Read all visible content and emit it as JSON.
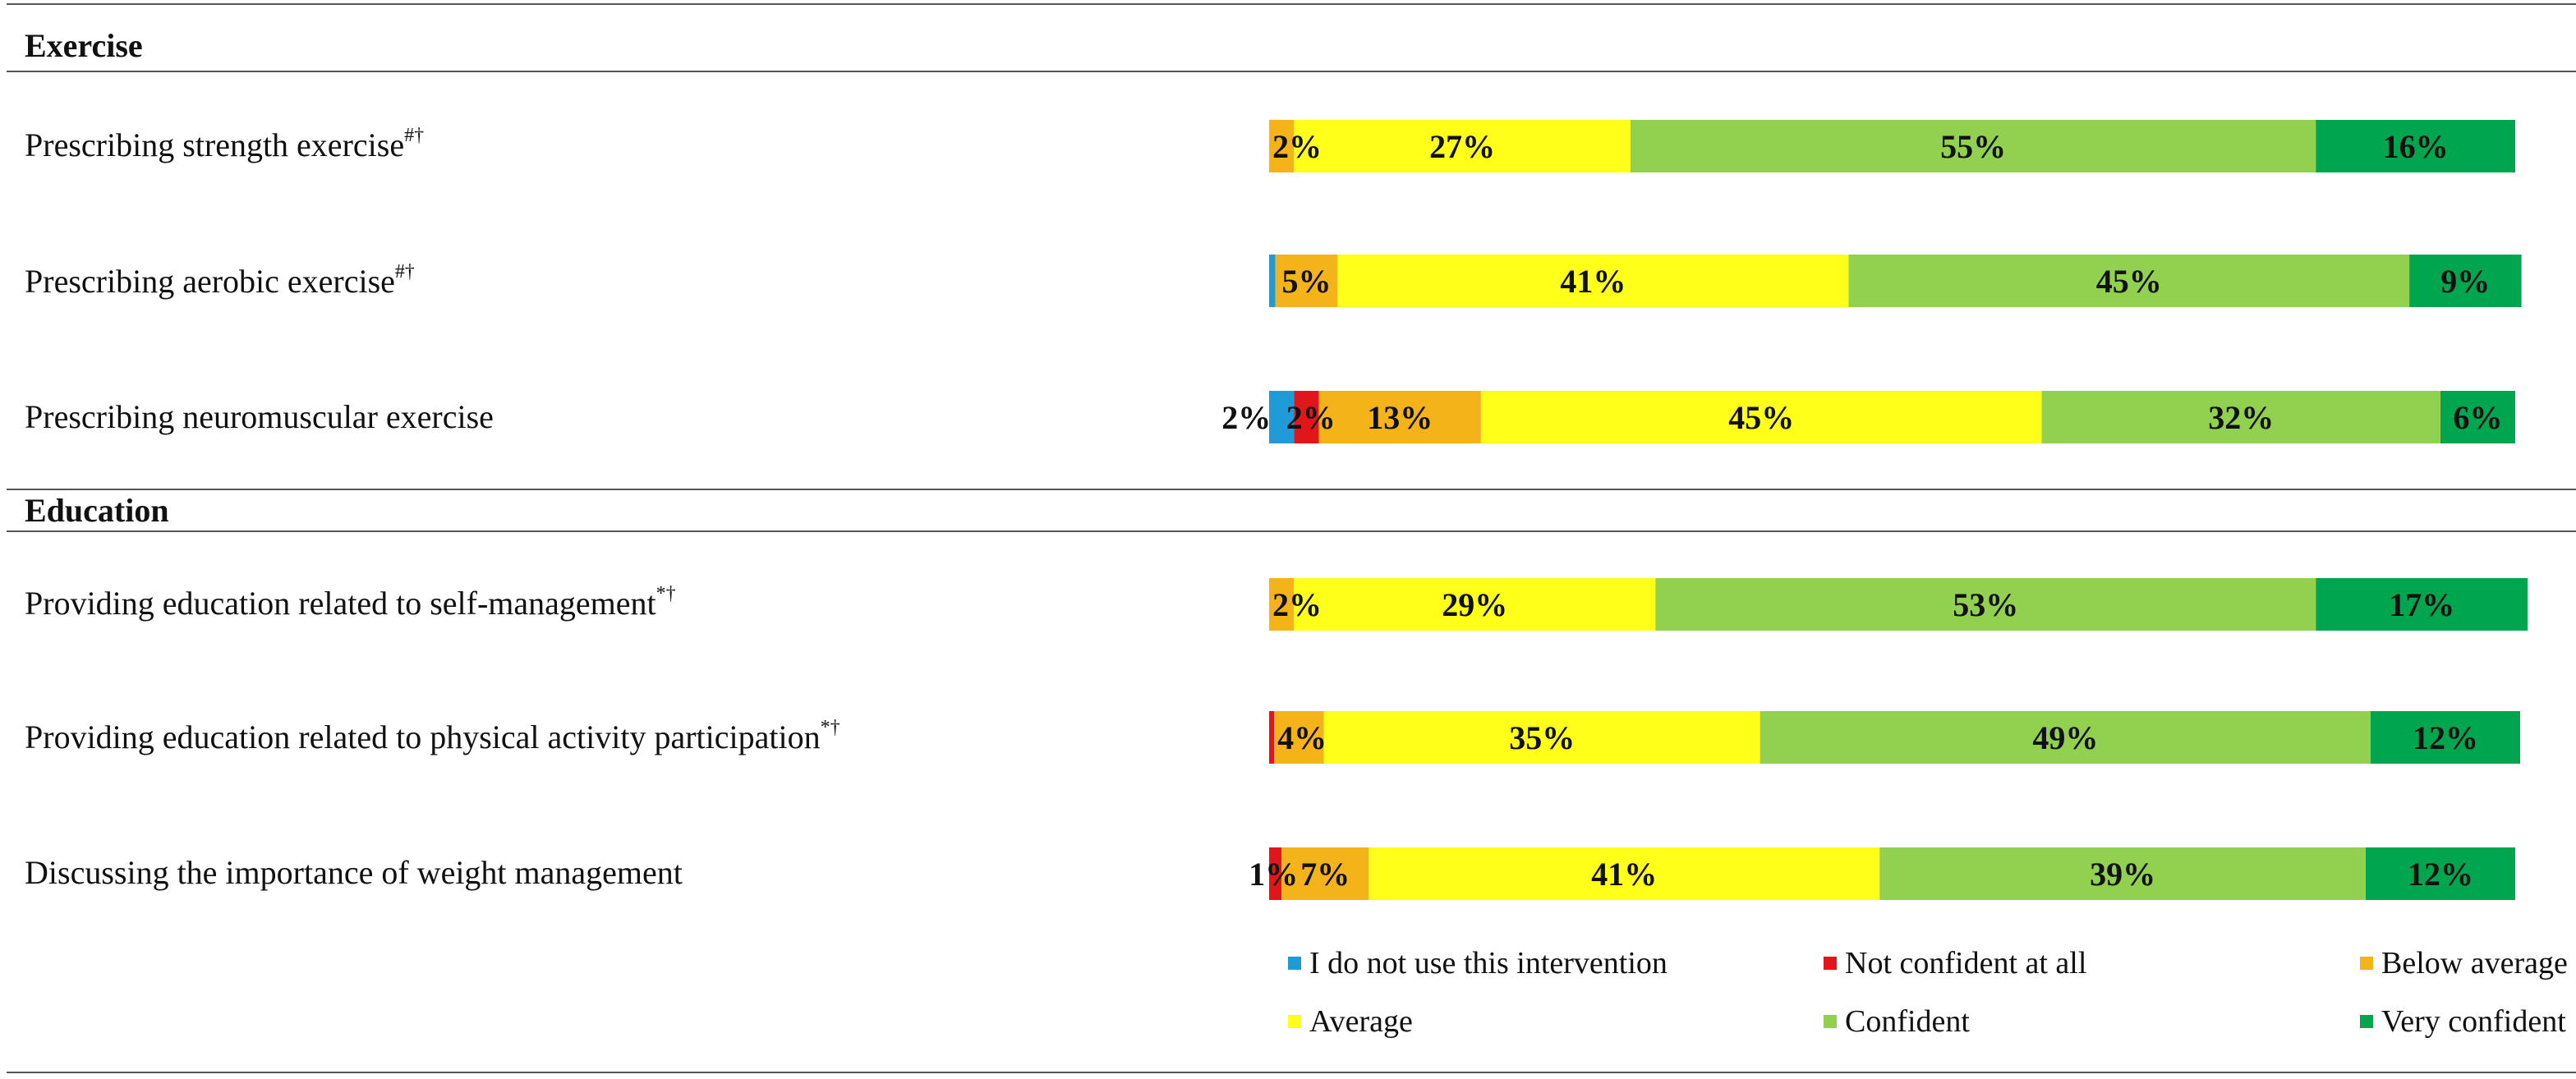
{
  "chart_data": {
    "type": "bar",
    "stacked": true,
    "orientation": "horizontal",
    "sections": [
      {
        "title": "Exercise",
        "rows": [
          0,
          1,
          2
        ]
      },
      {
        "title": "Education",
        "rows": [
          3,
          4,
          5
        ]
      }
    ],
    "categories": [
      "Prescribing strength exercise",
      "Prescribing aerobic exercise",
      "Prescribing neuromuscular exercise",
      "Providing education related to self-management",
      "Providing education related to physical activity participation",
      "Discussing the importance of weight management"
    ],
    "category_marks": [
      "#†",
      "#†",
      "",
      "*†",
      "*†",
      ""
    ],
    "series": [
      {
        "name": "I do not use this intervention",
        "color": "#1f9bd7",
        "values": [
          0,
          0.5,
          2,
          0,
          0,
          0
        ],
        "labels": [
          "",
          "",
          "2%",
          "",
          "",
          ""
        ]
      },
      {
        "name": "Not confident at all",
        "color": "#e0161a",
        "values": [
          0,
          0,
          2,
          0,
          0.4,
          1
        ],
        "labels": [
          "",
          "",
          "2%",
          "",
          "",
          "1%"
        ]
      },
      {
        "name": "Below average",
        "color": "#f5b31a",
        "values": [
          2,
          5,
          13,
          2,
          4,
          7
        ],
        "labels": [
          "2%",
          "5%",
          "13%",
          "2%",
          "4%",
          "7%"
        ]
      },
      {
        "name": "Average",
        "color": "#ffff1a",
        "values": [
          27,
          41,
          45,
          29,
          35,
          41
        ],
        "labels": [
          "27%",
          "41%",
          "45%",
          "29%",
          "35%",
          "41%"
        ]
      },
      {
        "name": "Confident",
        "color": "#92d050",
        "values": [
          55,
          45,
          32,
          53,
          49,
          39
        ],
        "labels": [
          "55%",
          "45%",
          "32%",
          "53%",
          "49%",
          "39%"
        ]
      },
      {
        "name": "Very confident",
        "color": "#00a64f",
        "values": [
          16,
          9,
          6,
          17,
          12,
          12
        ],
        "labels": [
          "16%",
          "9%",
          "6%",
          "17%",
          "12%",
          "12%"
        ]
      }
    ],
    "legend_position": "bottom-right",
    "grid": false
  }
}
